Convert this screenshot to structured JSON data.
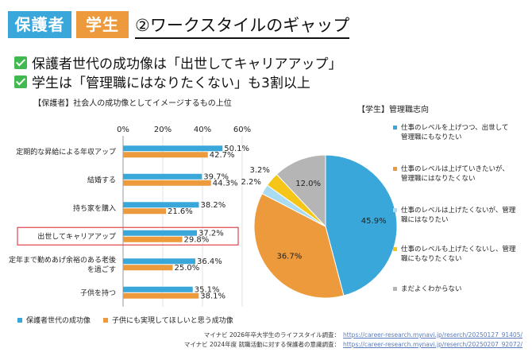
{
  "header": {
    "badge_parent": "保護者",
    "badge_student": "学生",
    "title": "②ワークスタイルのギャップ"
  },
  "points": [
    "保護者世代の成功像は「出世してキャリアアップ」",
    "学生は「管理職にはなりたくない」も3割以上"
  ],
  "colors": {
    "blue": "#3aa7da",
    "orange": "#ec9a3c",
    "light_blue": "#a9dcf2",
    "yellow": "#f5c518",
    "gray": "#b5b5b5",
    "highlight_border": "#e0444c"
  },
  "chart_data": [
    {
      "type": "bar",
      "orientation": "horizontal",
      "title": "【保護者】社会人の成功像としてイメージするもの上位",
      "categories": [
        "定期的な昇給による年収アップ",
        "結婚する",
        "持ち家を購入",
        "出世してキャリアアップ",
        "定年まで勤めあげ余裕のある老後を過ごす",
        "子供を持つ"
      ],
      "category_lines": [
        [
          "定期的な昇給による年収アップ"
        ],
        [
          "結婚する"
        ],
        [
          "持ち家を購入"
        ],
        [
          "出世してキャリアアップ"
        ],
        [
          "定年まで勤めあげ余裕のある老後",
          "を過ごす"
        ],
        [
          "子供を持つ"
        ]
      ],
      "highlighted_category": "出世してキャリアアップ",
      "series": [
        {
          "name": "保護者世代の成功像",
          "color": "#3aa7da",
          "values": [
            50.1,
            39.7,
            38.2,
            37.2,
            36.4,
            35.1
          ]
        },
        {
          "name": "子供にも実現してほしいと思う成功像",
          "color": "#ec9a3c",
          "values": [
            42.7,
            44.3,
            21.6,
            29.8,
            25.0,
            38.1
          ]
        }
      ],
      "xlim": [
        0,
        60
      ],
      "xticks": [
        "0%",
        "20%",
        "40%",
        "60%"
      ],
      "legend_position": "bottom-left"
    },
    {
      "type": "pie",
      "title": "【学生】管理職志向",
      "slices": [
        {
          "label": "仕事のレベルを上げつつ、出世して管理職にもなりたい",
          "value": 45.9,
          "color": "#3aa7da"
        },
        {
          "label": "仕事のレベルは上げていきたいが、管理職にはなりたくない",
          "value": 36.7,
          "color": "#ec9a3c"
        },
        {
          "label": "仕事のレベルは上げたくないが、管理職にはなりたい",
          "value": 2.2,
          "color": "#a9dcf2"
        },
        {
          "label": "仕事のレベルも上げたくないし、管理職にもなりたくない",
          "value": 3.2,
          "color": "#f5c518"
        },
        {
          "label": "まだよくわからない",
          "value": 12.0,
          "color": "#b5b5b5"
        }
      ],
      "value_labels": [
        "45.9%",
        "36.7%",
        "2.2%",
        "3.2%",
        "12.0%"
      ],
      "legend_lines": [
        [
          "仕事のレベルを上げつつ、出世して",
          "管理職にもなりたい"
        ],
        [
          "仕事のレベルは上げていきたいが、",
          "管理職にはなりたくない"
        ],
        [
          "仕事のレベルは上げたくないが、管理",
          "職にはなりたい"
        ],
        [
          "仕事のレベルも上げたくないし、管理",
          "職にもなりたくない"
        ],
        [
          "まだよくわからない"
        ]
      ],
      "legend_position": "right"
    }
  ],
  "sources": [
    {
      "label": "マイナビ 2026年卒大学生のライフスタイル調査：",
      "url": "https://career-research.mynavi.jp/reserch/20250127_91405/"
    },
    {
      "label": "マイナビ 2024年度 就職活動に対する保護者の意識調査：",
      "url": "https://career-research.mynavi.jp/reserch/20250207_92072/"
    }
  ]
}
